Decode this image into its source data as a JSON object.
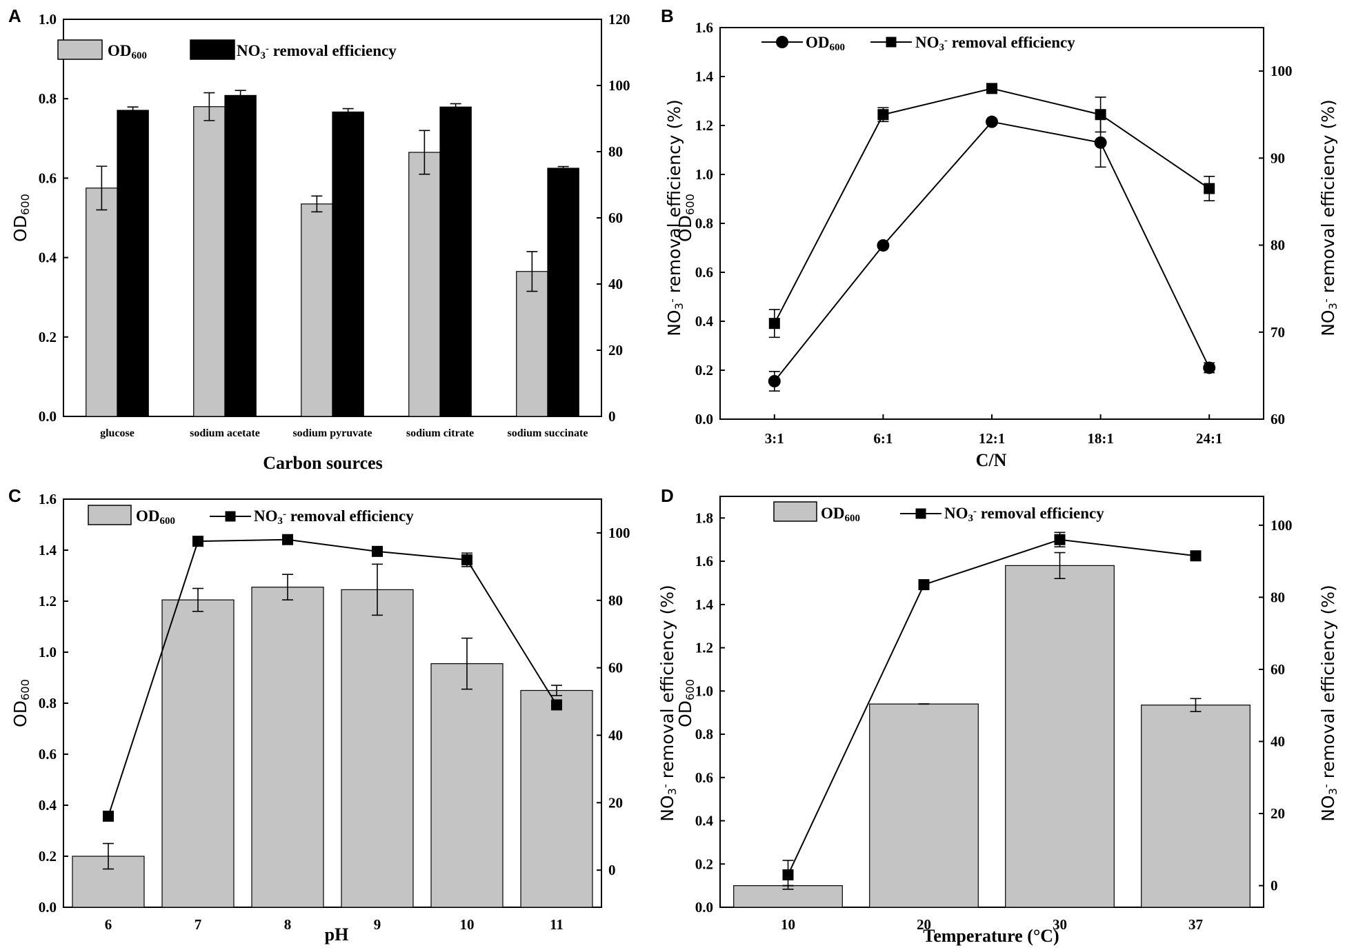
{
  "colors": {
    "bar_gray": "#c4c4c4",
    "bar_black": "#000000",
    "axis": "#000000",
    "line": "#000000"
  },
  "chart_data": [
    {
      "panel": "A",
      "type": "bar",
      "xlabel": "Carbon sources",
      "ylabel_left": "OD600",
      "ylabel_right": "NO3- removal efficiency (%)",
      "ylim_left": [
        0,
        1.0
      ],
      "ylim_right": [
        0,
        120
      ],
      "yticks_left": [
        "0.0",
        "0.2",
        "0.4",
        "0.6",
        "0.8",
        "1.0"
      ],
      "yticks_right": [
        "0",
        "20",
        "40",
        "60",
        "80",
        "100",
        "120"
      ],
      "categories": [
        "glucose",
        "sodium acetate",
        "sodium pyruvate",
        "sodium citrate",
        "sodium succinate"
      ],
      "series": [
        {
          "name": "OD600",
          "axis": "left",
          "values": [
            0.575,
            0.78,
            0.535,
            0.665,
            0.365
          ],
          "errors": [
            0.055,
            0.035,
            0.02,
            0.055,
            0.05
          ]
        },
        {
          "name": "NO3- removal efficiency",
          "axis": "right",
          "values": [
            92.5,
            97,
            92,
            93.5,
            75
          ],
          "errors": [
            1,
            1.5,
            1,
            1,
            0.5
          ]
        }
      ],
      "legend": [
        {
          "label": "OD",
          "sub": "600"
        },
        {
          "label": "NO",
          "sub": "3",
          "sup": "-",
          "rest": " removal efficiency"
        }
      ]
    },
    {
      "panel": "B",
      "type": "line",
      "xlabel": "C/N",
      "ylabel_left": "OD600",
      "ylabel_right": "NO3- removal efficiency (%)",
      "ylim_left": [
        0,
        1.6
      ],
      "ylim_right": [
        60,
        105
      ],
      "yticks_left": [
        "0.0",
        "0.2",
        "0.4",
        "0.6",
        "0.8",
        "1.0",
        "1.2",
        "1.4",
        "1.6"
      ],
      "yticks_right": [
        "60",
        "70",
        "80",
        "90",
        "100"
      ],
      "categories": [
        "3:1",
        "6:1",
        "12:1",
        "18:1",
        "24:1"
      ],
      "series": [
        {
          "name": "OD600",
          "axis": "left",
          "marker": "circle",
          "values": [
            0.155,
            0.71,
            1.215,
            1.13,
            0.21
          ],
          "errors": [
            0.04,
            0.01,
            0.01,
            0.1,
            0.02
          ]
        },
        {
          "name": "NO3- removal efficiency",
          "axis": "right",
          "marker": "square",
          "values": [
            71,
            95,
            98,
            95,
            86.5
          ],
          "errors": [
            1.6,
            0.8,
            0.5,
            2,
            1.4
          ]
        }
      ],
      "legend": [
        {
          "label": "OD",
          "sub": "600"
        },
        {
          "label": "NO",
          "sub": "3",
          "sup": "-",
          "rest": " removal efficiency"
        }
      ]
    },
    {
      "panel": "C",
      "type": "bar",
      "xlabel": "pH",
      "ylabel_left": "OD600",
      "ylabel_right": "NO3- removal efficiency (%)",
      "ylim_left": [
        0,
        1.6
      ],
      "ylim_right": [
        -11,
        110
      ],
      "yticks_left": [
        "0.0",
        "0.2",
        "0.4",
        "0.6",
        "0.8",
        "1.0",
        "1.2",
        "1.4",
        "1.6"
      ],
      "yticks_right": [
        "0",
        "20",
        "40",
        "60",
        "80",
        "100"
      ],
      "categories": [
        "6",
        "7",
        "8",
        "9",
        "10",
        "11"
      ],
      "series": [
        {
          "name": "OD600",
          "axis": "left",
          "render": "bar",
          "values": [
            0.2,
            1.205,
            1.255,
            1.245,
            0.955,
            0.85
          ],
          "errors": [
            0.05,
            0.045,
            0.05,
            0.1,
            0.1,
            0.02
          ]
        },
        {
          "name": "NO3- removal efficiency",
          "axis": "right",
          "render": "line",
          "marker": "square",
          "values": [
            16,
            97.5,
            98,
            94.5,
            92,
            49
          ],
          "errors": [
            0,
            0,
            0,
            0,
            2,
            0
          ]
        }
      ],
      "legend": [
        {
          "label": "OD",
          "sub": "600"
        },
        {
          "label": "NO",
          "sub": "3",
          "sup": "-",
          "rest": " removal efficiency"
        }
      ]
    },
    {
      "panel": "D",
      "type": "bar",
      "xlabel": "Temperature (°C)",
      "ylabel_left": "OD600",
      "ylabel_right": "NO3- removal efficiency (%)",
      "ylim_left": [
        0,
        1.9
      ],
      "ylim_right": [
        -6,
        108
      ],
      "yticks_left": [
        "0.0",
        "0.2",
        "0.4",
        "0.6",
        "0.8",
        "1.0",
        "1.2",
        "1.4",
        "1.6",
        "1.8"
      ],
      "yticks_right": [
        "0",
        "20",
        "40",
        "60",
        "80",
        "100"
      ],
      "categories": [
        "10",
        "20",
        "30",
        "37"
      ],
      "series": [
        {
          "name": "OD600",
          "axis": "left",
          "render": "bar",
          "values": [
            0.1,
            0.94,
            1.58,
            0.935
          ],
          "errors": [
            0,
            0,
            0.06,
            0.03
          ]
        },
        {
          "name": "NO3- removal efficiency",
          "axis": "right",
          "render": "line",
          "marker": "square",
          "values": [
            3,
            83.5,
            96,
            91.5
          ],
          "errors": [
            4,
            0,
            2,
            0
          ]
        }
      ],
      "legend": [
        {
          "label": "OD",
          "sub": "600"
        },
        {
          "label": "NO",
          "sub": "3",
          "sup": "-",
          "rest": " removal efficiency"
        }
      ]
    }
  ]
}
